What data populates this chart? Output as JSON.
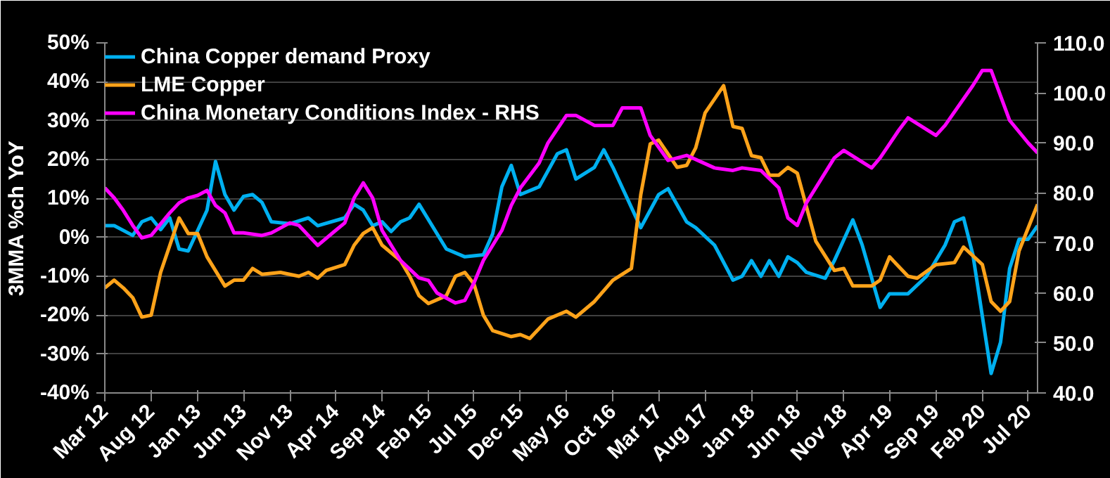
{
  "chart_data": {
    "type": "line",
    "ylabel": "3MMA %ch YoY",
    "xlim": [
      "2012-03",
      "2020-08"
    ],
    "xticks": [
      {
        "value": "2012-03",
        "label": "Mar 12"
      },
      {
        "value": "2012-08",
        "label": "Aug 12"
      },
      {
        "value": "2013-01",
        "label": "Jan 13"
      },
      {
        "value": "2013-06",
        "label": "Jun 13"
      },
      {
        "value": "2013-11",
        "label": "Nov 13"
      },
      {
        "value": "2014-04",
        "label": "Apr 14"
      },
      {
        "value": "2014-09",
        "label": "Sep 14"
      },
      {
        "value": "2015-02",
        "label": "Feb 15"
      },
      {
        "value": "2015-07",
        "label": "Jul 15"
      },
      {
        "value": "2015-12",
        "label": "Dec 15"
      },
      {
        "value": "2016-05",
        "label": "May 16"
      },
      {
        "value": "2016-10",
        "label": "Oct 16"
      },
      {
        "value": "2017-03",
        "label": "Mar 17"
      },
      {
        "value": "2017-08",
        "label": "Aug 17"
      },
      {
        "value": "2018-01",
        "label": "Jan 18"
      },
      {
        "value": "2018-06",
        "label": "Jun 18"
      },
      {
        "value": "2018-11",
        "label": "Nov 18"
      },
      {
        "value": "2019-04",
        "label": "Apr 19"
      },
      {
        "value": "2019-09",
        "label": "Sep 19"
      },
      {
        "value": "2020-02",
        "label": "Feb 20"
      },
      {
        "value": "2020-07",
        "label": "Jul 20"
      }
    ],
    "ylim": [
      -40,
      50
    ],
    "yticks": [
      {
        "value": -40,
        "label": "-40%"
      },
      {
        "value": -30,
        "label": "-30%"
      },
      {
        "value": -20,
        "label": "-20%"
      },
      {
        "value": -10,
        "label": "-10%"
      },
      {
        "value": 0,
        "label": "0%"
      },
      {
        "value": 10,
        "label": "10%"
      },
      {
        "value": 20,
        "label": "20%"
      },
      {
        "value": 30,
        "label": "30%"
      },
      {
        "value": 40,
        "label": "40%"
      },
      {
        "value": 50,
        "label": "50%"
      }
    ],
    "y2lim": [
      40,
      110
    ],
    "y2ticks": [
      {
        "value": 40,
        "label": "40.0"
      },
      {
        "value": 50,
        "label": "50.0"
      },
      {
        "value": 60,
        "label": "60.0"
      },
      {
        "value": 70,
        "label": "70.0"
      },
      {
        "value": 80,
        "label": "80.0"
      },
      {
        "value": 90,
        "label": "90.0"
      },
      {
        "value": 100,
        "label": "100.0"
      },
      {
        "value": 110,
        "label": "110.0"
      }
    ],
    "grid": "y",
    "legend": "top left",
    "marker": "none",
    "line_style": "solid",
    "series": [
      {
        "name": "China Copper demand Proxy",
        "color": "#00b0f0",
        "x": [
          "2012-03",
          "2012-04",
          "2012-06",
          "2012-07",
          "2012-08",
          "2012-09",
          "2012-10",
          "2012-11",
          "2012-12",
          "2013-02",
          "2013-03",
          "2013-04",
          "2013-05",
          "2013-06",
          "2013-07",
          "2013-08",
          "2013-09",
          "2013-11",
          "2014-01",
          "2014-02",
          "2014-05",
          "2014-06",
          "2014-07",
          "2014-08",
          "2014-09",
          "2014-10",
          "2014-11",
          "2014-12",
          "2015-01",
          "2015-04",
          "2015-06",
          "2015-08",
          "2015-09",
          "2015-10",
          "2015-11",
          "2015-12",
          "2016-02",
          "2016-04",
          "2016-05",
          "2016-06",
          "2016-08",
          "2016-09",
          "2016-10",
          "2017-01",
          "2017-03",
          "2017-04",
          "2017-06",
          "2017-07",
          "2017-09",
          "2017-11",
          "2017-12",
          "2018-01",
          "2018-02",
          "2018-03",
          "2018-04",
          "2018-05",
          "2018-06",
          "2018-07",
          "2018-09",
          "2018-10",
          "2018-12",
          "2019-01",
          "2019-03",
          "2019-04",
          "2019-06",
          "2019-08",
          "2019-10",
          "2019-11",
          "2019-12",
          "2020-01",
          "2020-03",
          "2020-04",
          "2020-05",
          "2020-06",
          "2020-07",
          "2020-08"
        ],
        "values": [
          3,
          3,
          0.5,
          4,
          5,
          2,
          5,
          -3,
          -3.5,
          7,
          19.5,
          11,
          7,
          10.5,
          11,
          9,
          4,
          3.5,
          5,
          3,
          5,
          8.5,
          7,
          3,
          4,
          1.5,
          4,
          5,
          8.5,
          -3,
          -5,
          -4.5,
          1,
          13,
          18.5,
          11,
          13,
          21.5,
          22.5,
          15,
          18,
          22.5,
          18,
          2.5,
          11,
          12.5,
          4,
          2.5,
          -2,
          -11,
          -10,
          -6,
          -10,
          -6,
          -10,
          -5,
          -6.5,
          -9,
          -10.5,
          -6,
          4.5,
          -2,
          -18,
          -14.5,
          -14.5,
          -10,
          -2,
          4,
          5,
          -4.5,
          -35,
          -27,
          -8,
          -0.5,
          -0.5,
          3
        ]
      },
      {
        "name": "LME Copper",
        "color": "#ffa31a",
        "x": [
          "2012-03",
          "2012-04",
          "2012-05",
          "2012-06",
          "2012-07",
          "2012-08",
          "2012-09",
          "2012-11",
          "2012-12",
          "2013-01",
          "2013-02",
          "2013-04",
          "2013-05",
          "2013-06",
          "2013-07",
          "2013-08",
          "2013-10",
          "2013-12",
          "2014-01",
          "2014-02",
          "2014-03",
          "2014-05",
          "2014-06",
          "2014-07",
          "2014-08",
          "2014-09",
          "2014-11",
          "2014-12",
          "2015-01",
          "2015-02",
          "2015-04",
          "2015-05",
          "2015-06",
          "2015-07",
          "2015-08",
          "2015-09",
          "2015-11",
          "2015-12",
          "2016-01",
          "2016-03",
          "2016-05",
          "2016-06",
          "2016-08",
          "2016-10",
          "2016-12",
          "2017-01",
          "2017-02",
          "2017-03",
          "2017-05",
          "2017-06",
          "2017-07",
          "2017-08",
          "2017-10",
          "2017-11",
          "2017-12",
          "2018-01",
          "2018-02",
          "2018-03",
          "2018-04",
          "2018-05",
          "2018-06",
          "2018-08",
          "2018-10",
          "2018-11",
          "2018-12",
          "2019-02",
          "2019-03",
          "2019-04",
          "2019-06",
          "2019-07",
          "2019-09",
          "2019-11",
          "2019-12",
          "2020-02",
          "2020-03",
          "2020-04",
          "2020-05",
          "2020-06",
          "2020-08"
        ],
        "values": [
          -13,
          -11,
          -13,
          -15.5,
          -20.5,
          -20,
          -9,
          5,
          1,
          1,
          -5,
          -12.5,
          -11,
          -11,
          -8,
          -9.5,
          -9,
          -10,
          -9,
          -10.5,
          -8.5,
          -7,
          -2,
          1,
          2.5,
          -2,
          -6,
          -10,
          -15,
          -17,
          -15,
          -10,
          -9,
          -12,
          -20,
          -24,
          -25.5,
          -25,
          -26,
          -21,
          -19,
          -20.5,
          -16.5,
          -11,
          -8,
          11,
          24,
          25,
          18,
          18.5,
          23,
          32,
          39,
          28.5,
          28,
          21,
          20.5,
          16,
          16,
          18,
          16.5,
          -1,
          -8.5,
          -8,
          -12.5,
          -12.5,
          -11,
          -5,
          -10,
          -10.5,
          -7,
          -6.5,
          -2.5,
          -7,
          -16.5,
          -19,
          -16.5,
          -3.5,
          8.5
        ]
      },
      {
        "name": "China Monetary Conditions Index - RHS",
        "color": "#ff00ff",
        "axis": "y2",
        "x": [
          "2012-03",
          "2012-04",
          "2012-05",
          "2012-06",
          "2012-07",
          "2012-08",
          "2012-10",
          "2012-11",
          "2012-12",
          "2013-01",
          "2013-02",
          "2013-03",
          "2013-04",
          "2013-05",
          "2013-06",
          "2013-08",
          "2013-09",
          "2013-11",
          "2013-12",
          "2014-02",
          "2014-04",
          "2014-05",
          "2014-06",
          "2014-07",
          "2014-08",
          "2014-09",
          "2014-11",
          "2015-01",
          "2015-02",
          "2015-03",
          "2015-05",
          "2015-06",
          "2015-07",
          "2015-08",
          "2015-10",
          "2015-11",
          "2015-12",
          "2016-02",
          "2016-03",
          "2016-05",
          "2016-06",
          "2016-08",
          "2016-10",
          "2016-11",
          "2017-01",
          "2017-02",
          "2017-04",
          "2017-06",
          "2017-09",
          "2017-11",
          "2017-12",
          "2018-02",
          "2018-04",
          "2018-05",
          "2018-06",
          "2018-07",
          "2018-10",
          "2018-11",
          "2019-02",
          "2019-03",
          "2019-05",
          "2019-06",
          "2019-09",
          "2019-10",
          "2020-01",
          "2020-02",
          "2020-03",
          "2020-05",
          "2020-07",
          "2020-08"
        ],
        "values": [
          81,
          79,
          76.5,
          73.5,
          71,
          71.5,
          76,
          78,
          79,
          79.5,
          80.5,
          77.5,
          76,
          72,
          72,
          71.5,
          72,
          74,
          73.5,
          69.5,
          72.5,
          74,
          79,
          82,
          79,
          72.5,
          66.5,
          63,
          62.5,
          60,
          58,
          58.5,
          62,
          66.5,
          72.5,
          77.5,
          81,
          86,
          90,
          95.5,
          95.5,
          93.5,
          93.5,
          97,
          97,
          91.5,
          86.5,
          87.5,
          85,
          84.5,
          85,
          84.5,
          81,
          75,
          73.5,
          78,
          87,
          88.5,
          85,
          87,
          92.5,
          95,
          91.5,
          93.5,
          101.5,
          104.5,
          104.5,
          94.5,
          90,
          88
        ]
      }
    ]
  }
}
